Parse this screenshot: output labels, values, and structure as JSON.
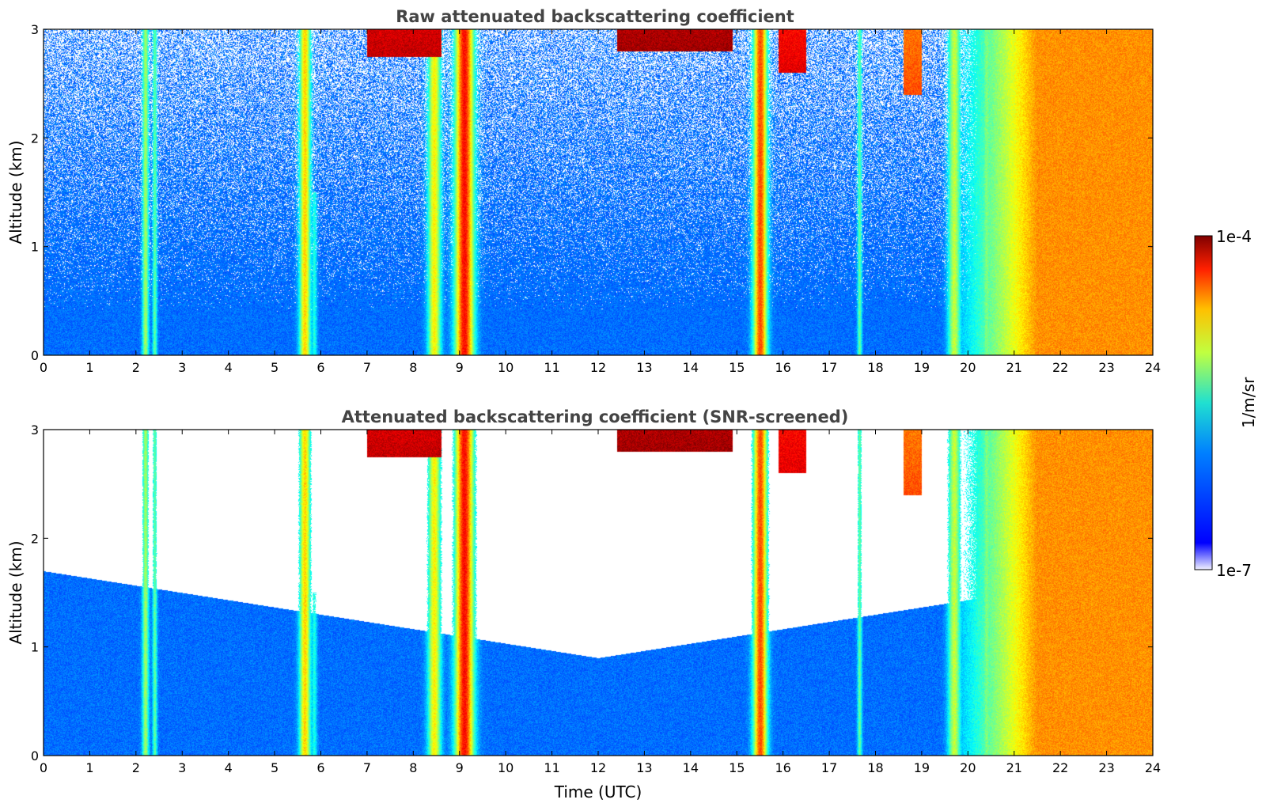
{
  "chart_data": [
    {
      "type": "heatmap",
      "title": "Raw attenuated backscattering coefficient",
      "ylabel": "Altitude (km)",
      "xlabel": "",
      "xlim": [
        0,
        24
      ],
      "ylim": [
        0,
        3
      ],
      "x_ticks": [
        "0",
        "1",
        "2",
        "3",
        "4",
        "5",
        "6",
        "7",
        "8",
        "9",
        "10",
        "11",
        "12",
        "13",
        "14",
        "15",
        "16",
        "17",
        "18",
        "19",
        "20",
        "21",
        "22",
        "23",
        "24"
      ],
      "y_ticks": [
        "0",
        "1",
        "2",
        "3"
      ],
      "screened": false
    },
    {
      "type": "heatmap",
      "title": "Attenuated backscattering coefficient (SNR-screened)",
      "ylabel": "Altitude (km)",
      "xlabel": "Time (UTC)",
      "xlim": [
        0,
        24
      ],
      "ylim": [
        0,
        3
      ],
      "x_ticks": [
        "0",
        "1",
        "2",
        "3",
        "4",
        "5",
        "6",
        "7",
        "8",
        "9",
        "10",
        "11",
        "12",
        "13",
        "14",
        "15",
        "16",
        "17",
        "18",
        "19",
        "20",
        "21",
        "22",
        "23",
        "24"
      ],
      "y_ticks": [
        "0",
        "1",
        "2",
        "3"
      ],
      "screened": true
    }
  ],
  "colorbar": {
    "label": "1/m/sr",
    "max_label": "1e-4",
    "min_label": "1e-7",
    "colormap": "jet",
    "log_range": [
      -7,
      -4
    ]
  },
  "features": {
    "baseline_log": -6.3,
    "plumes": [
      {
        "t": 2.2,
        "w": 0.07,
        "top": 3.0,
        "log": -5.4
      },
      {
        "t": 2.4,
        "w": 0.05,
        "top": 3.0,
        "log": -5.6
      },
      {
        "t": 5.65,
        "w": 0.12,
        "top": 3.0,
        "log": -5.0
      },
      {
        "t": 5.85,
        "w": 0.06,
        "top": 1.5,
        "log": -5.8
      },
      {
        "t": 8.45,
        "w": 0.14,
        "top": 3.0,
        "log": -5.1
      },
      {
        "t": 9.1,
        "w": 0.2,
        "top": 3.0,
        "log": -4.4
      },
      {
        "t": 15.5,
        "w": 0.15,
        "top": 3.0,
        "log": -4.6
      },
      {
        "t": 17.65,
        "w": 0.05,
        "top": 3.0,
        "log": -5.6
      },
      {
        "t": 19.7,
        "w": 0.14,
        "top": 3.0,
        "log": -5.3
      },
      {
        "t": 20.4,
        "w": 0.12,
        "top": 3.0,
        "log": -5.5
      },
      {
        "t": 21.0,
        "w": 0.14,
        "top": 3.0,
        "log": -5.3
      },
      {
        "t": 21.7,
        "w": 0.12,
        "top": 3.0,
        "log": -5.0
      }
    ],
    "elevated_layers": [
      {
        "t0": 7.0,
        "t1": 8.6,
        "base": 2.75,
        "log": -4.2
      },
      {
        "t0": 12.4,
        "t1": 14.9,
        "base": 2.8,
        "log": -4.1
      },
      {
        "t0": 15.9,
        "t1": 16.5,
        "base": 2.6,
        "log": -4.3
      },
      {
        "t0": 18.6,
        "t1": 19.0,
        "base": 2.4,
        "log": -4.6
      }
    ],
    "dense_cloud": {
      "t0": 19.5,
      "t1": 24.0,
      "log": -4.8
    }
  }
}
